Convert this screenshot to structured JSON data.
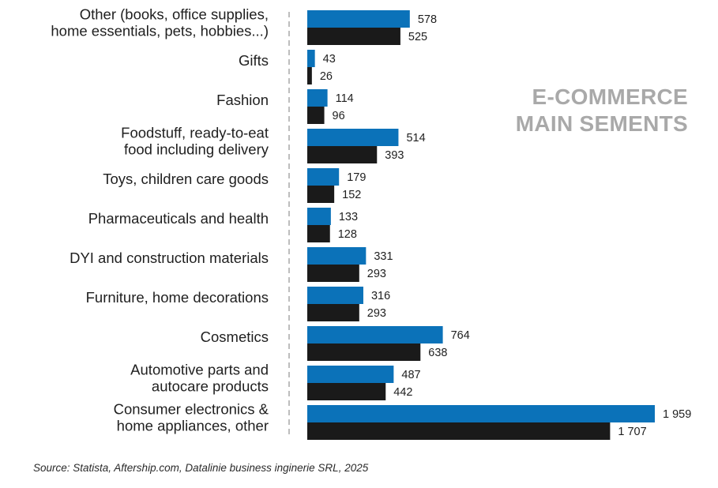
{
  "chart_data": {
    "type": "bar",
    "orientation": "horizontal",
    "title": [
      "E-COMMERCE",
      "MAIN SEMENTS"
    ],
    "categories": [
      [
        "Other (books, office supplies,",
        "home essentials, pets, hobbies...)"
      ],
      [
        "Gifts"
      ],
      [
        "Fashion"
      ],
      [
        "Foodstuff, ready-to-eat",
        "food including delivery"
      ],
      [
        "Toys, children care goods"
      ],
      [
        "Pharmaceuticals and health"
      ],
      [
        "DYI and construction materials"
      ],
      [
        "Furniture, home decorations"
      ],
      [
        "Cosmetics"
      ],
      [
        "Automotive parts and",
        "autocare products"
      ],
      [
        "Consumer electronics &",
        "home appliances, other"
      ]
    ],
    "series": [
      {
        "name": "Series 1 (blue)",
        "color": "#0B72B9",
        "values": [
          578,
          43,
          114,
          514,
          179,
          133,
          331,
          316,
          764,
          487,
          1959
        ],
        "labels": [
          "578",
          "43",
          "114",
          "514",
          "179",
          "133",
          "331",
          "316",
          "764",
          "487",
          "1 959"
        ]
      },
      {
        "name": "Series 2 (black)",
        "color": "#1A1A1A",
        "values": [
          525,
          26,
          96,
          393,
          152,
          128,
          293,
          293,
          638,
          442,
          1707
        ],
        "labels": [
          "525",
          "26",
          "96",
          "393",
          "152",
          "128",
          "293",
          "293",
          "638",
          "442",
          "1 707"
        ]
      }
    ],
    "xlim": [
      0,
      1959
    ],
    "grid": false,
    "legend": "none",
    "baseline": "dashed vertical line"
  },
  "source": "Source: Statista, Aftership.com, Datalinie business inginerie SRL, 2025"
}
